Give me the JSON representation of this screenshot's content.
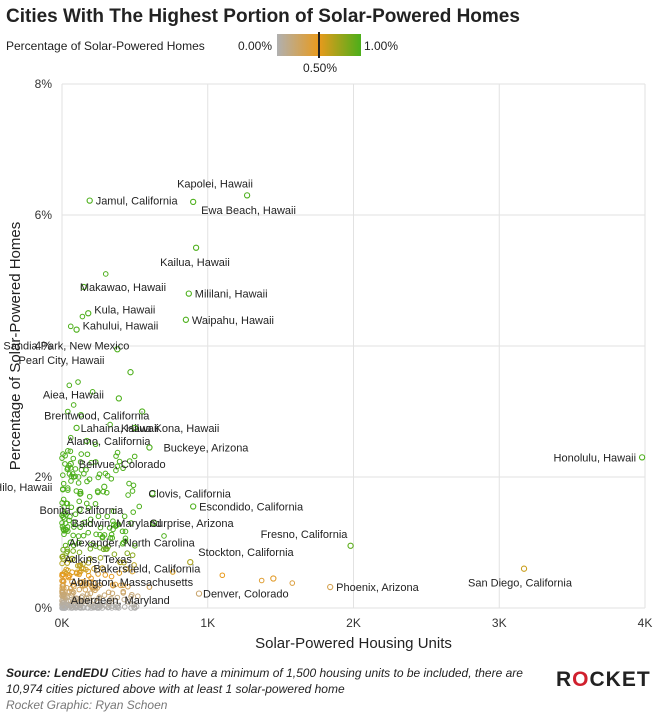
{
  "title": "Cities With The Highest Portion of Solar-Powered Homes",
  "legend": {
    "label": "Percentage of Solar-Powered Homes",
    "min_label": "0.00%",
    "mid_label": "0.50%",
    "max_label": "1.00%",
    "colors": {
      "low": "#b0b0b0",
      "mid": "#e89a1c",
      "high": "#4caf1a"
    }
  },
  "footer": {
    "source_label": "Source: LendEDU",
    "note": " Cities had to have a minimum of 1,500 housing units to be included, there are 10,974 cities pictured above with at least 1 solar-powered home",
    "credit": "Rocket Graphic: Ryan Schoen"
  },
  "brand": {
    "text_a": "R",
    "text_o": "O",
    "text_b": "CKET"
  },
  "chart_data": {
    "type": "scatter",
    "title": "Cities With The Highest Portion of Solar-Powered Homes",
    "xlabel": "Solar-Powered Housing Units",
    "ylabel": "Percentage of Solar-Powered Homes",
    "xlim": [
      0,
      4000
    ],
    "ylim": [
      0,
      8
    ],
    "x_ticks": [
      "0K",
      "1K",
      "2K",
      "3K",
      "4K"
    ],
    "y_ticks": [
      "0%",
      "2%",
      "4%",
      "6%",
      "8%"
    ],
    "grid": true,
    "points": [
      {
        "label": "Kapolei, Hawaii",
        "x": 1270,
        "y": 6.3
      },
      {
        "label": "Ewa Beach, Hawaii",
        "x": 900,
        "y": 6.2
      },
      {
        "label": "Jamul, California",
        "x": 190,
        "y": 6.22
      },
      {
        "label": "Kailua, Hawaii",
        "x": 920,
        "y": 5.5
      },
      {
        "label": "Makawao, Hawaii",
        "x": 150,
        "y": 4.9
      },
      {
        "label": "Mililani, Hawaii",
        "x": 870,
        "y": 4.8
      },
      {
        "label": "Kula, Hawaii",
        "x": 180,
        "y": 4.5
      },
      {
        "label": "Kahului, Hawaii",
        "x": 100,
        "y": 4.25
      },
      {
        "label": "Waipahu, Hawaii",
        "x": 850,
        "y": 4.4
      },
      {
        "label": "Sandia Park, New Mexico",
        "x": 380,
        "y": 3.95
      },
      {
        "label": "Pearl City, Hawaii",
        "x": 470,
        "y": 3.6
      },
      {
        "label": "Aiea, Hawaii",
        "x": 390,
        "y": 3.2
      },
      {
        "label": "Brentwood, California",
        "x": 550,
        "y": 3.0
      },
      {
        "label": "Lahaina, Hawaii",
        "x": 100,
        "y": 2.75
      },
      {
        "label": "Kailua Kona, Hawaii",
        "x": 500,
        "y": 2.75
      },
      {
        "label": "Alamo, California",
        "x": 170,
        "y": 2.55
      },
      {
        "label": "Buckeye, Arizona",
        "x": 600,
        "y": 2.45
      },
      {
        "label": "Bellvue, Colorado",
        "x": 60,
        "y": 2.2
      },
      {
        "label": "Honolulu, Hawaii",
        "x": 3980,
        "y": 2.3
      },
      {
        "label": "Hilo, Hawaii",
        "x": 290,
        "y": 1.85
      },
      {
        "label": "Clovis, California",
        "x": 620,
        "y": 1.75
      },
      {
        "label": "Bonita, California",
        "x": 120,
        "y": 1.5
      },
      {
        "label": "Escondido, California",
        "x": 900,
        "y": 1.55
      },
      {
        "label": "Baldwin, Maryland",
        "x": 80,
        "y": 1.3
      },
      {
        "label": "Surprise, Arizona",
        "x": 630,
        "y": 1.3
      },
      {
        "label": "Fresno, California",
        "x": 1980,
        "y": 0.95
      },
      {
        "label": "Alexander, North Carolina",
        "x": 60,
        "y": 1.0
      },
      {
        "label": "Stockton, California",
        "x": 880,
        "y": 0.7
      },
      {
        "label": "Adkins, Texas",
        "x": 70,
        "y": 0.75
      },
      {
        "label": "Bakersfield, California",
        "x": 1450,
        "y": 0.45
      },
      {
        "label": "San Diego, California",
        "x": 3170,
        "y": 0.6
      },
      {
        "label": "Abington, Massachusetts",
        "x": 70,
        "y": 0.4
      },
      {
        "label": "Phoenix, Arizona",
        "x": 1840,
        "y": 0.32
      },
      {
        "label": "Denver, Colorado",
        "x": 940,
        "y": 0.22
      },
      {
        "label": "Aberdeen, Maryland",
        "x": 60,
        "y": 0.12
      }
    ],
    "extra_points": [
      [
        300,
        5.1
      ],
      [
        60,
        4.3
      ],
      [
        140,
        4.45
      ],
      [
        50,
        3.4
      ],
      [
        110,
        3.45
      ],
      [
        80,
        3.1
      ],
      [
        210,
        3.3
      ],
      [
        130,
        2.95
      ],
      [
        330,
        2.8
      ],
      [
        60,
        2.6
      ],
      [
        230,
        2.5
      ],
      [
        40,
        2.4
      ],
      [
        80,
        2.0
      ],
      [
        150,
        2.05
      ],
      [
        40,
        1.8
      ],
      [
        190,
        1.7
      ],
      [
        370,
        2.1
      ],
      [
        460,
        1.9
      ],
      [
        530,
        1.55
      ],
      [
        250,
        1.4
      ],
      [
        430,
        1.4
      ],
      [
        350,
        1.2
      ],
      [
        180,
        1.15
      ],
      [
        500,
        0.95
      ],
      [
        300,
        0.9
      ],
      [
        120,
        0.85
      ],
      [
        400,
        0.7
      ],
      [
        220,
        0.6
      ],
      [
        1580,
        0.38
      ],
      [
        1370,
        0.42
      ],
      [
        1100,
        0.5
      ],
      [
        700,
        1.1
      ],
      [
        760,
        0.55
      ],
      [
        40,
        3.0
      ],
      [
        20,
        2.2
      ],
      [
        30,
        1.6
      ],
      [
        25,
        1.2
      ],
      [
        35,
        0.9
      ],
      [
        20,
        0.55
      ],
      [
        260,
        0.35
      ],
      [
        420,
        0.25
      ],
      [
        520,
        0.18
      ],
      [
        160,
        0.28
      ],
      [
        340,
        0.48
      ],
      [
        600,
        0.32
      ]
    ]
  }
}
